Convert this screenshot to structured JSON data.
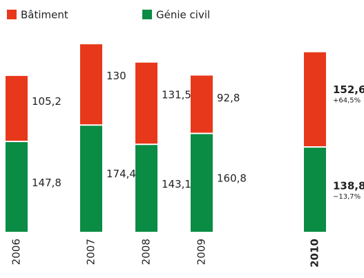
{
  "chart_data": {
    "type": "stacked-bar",
    "categories": [
      "2006",
      "2007",
      "2008",
      "2009",
      "2010"
    ],
    "series": [
      {
        "name": "Génie civil",
        "color": "#0a8c45",
        "values": [
          147.8,
          174.4,
          143.1,
          160.8,
          138.8
        ],
        "value_labels": [
          "147,8",
          "174,4",
          "143,1",
          "160,8",
          "138,8"
        ],
        "change_labels": [
          null,
          null,
          null,
          null,
          "−13,7%"
        ]
      },
      {
        "name": "Bâtiment",
        "color": "#e8381b",
        "values": [
          105.2,
          130,
          131.5,
          92.8,
          152.6
        ],
        "value_labels": [
          "105,2",
          "130",
          "131,5",
          "92,8",
          "152,6"
        ],
        "change_labels": [
          null,
          null,
          null,
          null,
          "+64,5%"
        ]
      }
    ]
  }
}
